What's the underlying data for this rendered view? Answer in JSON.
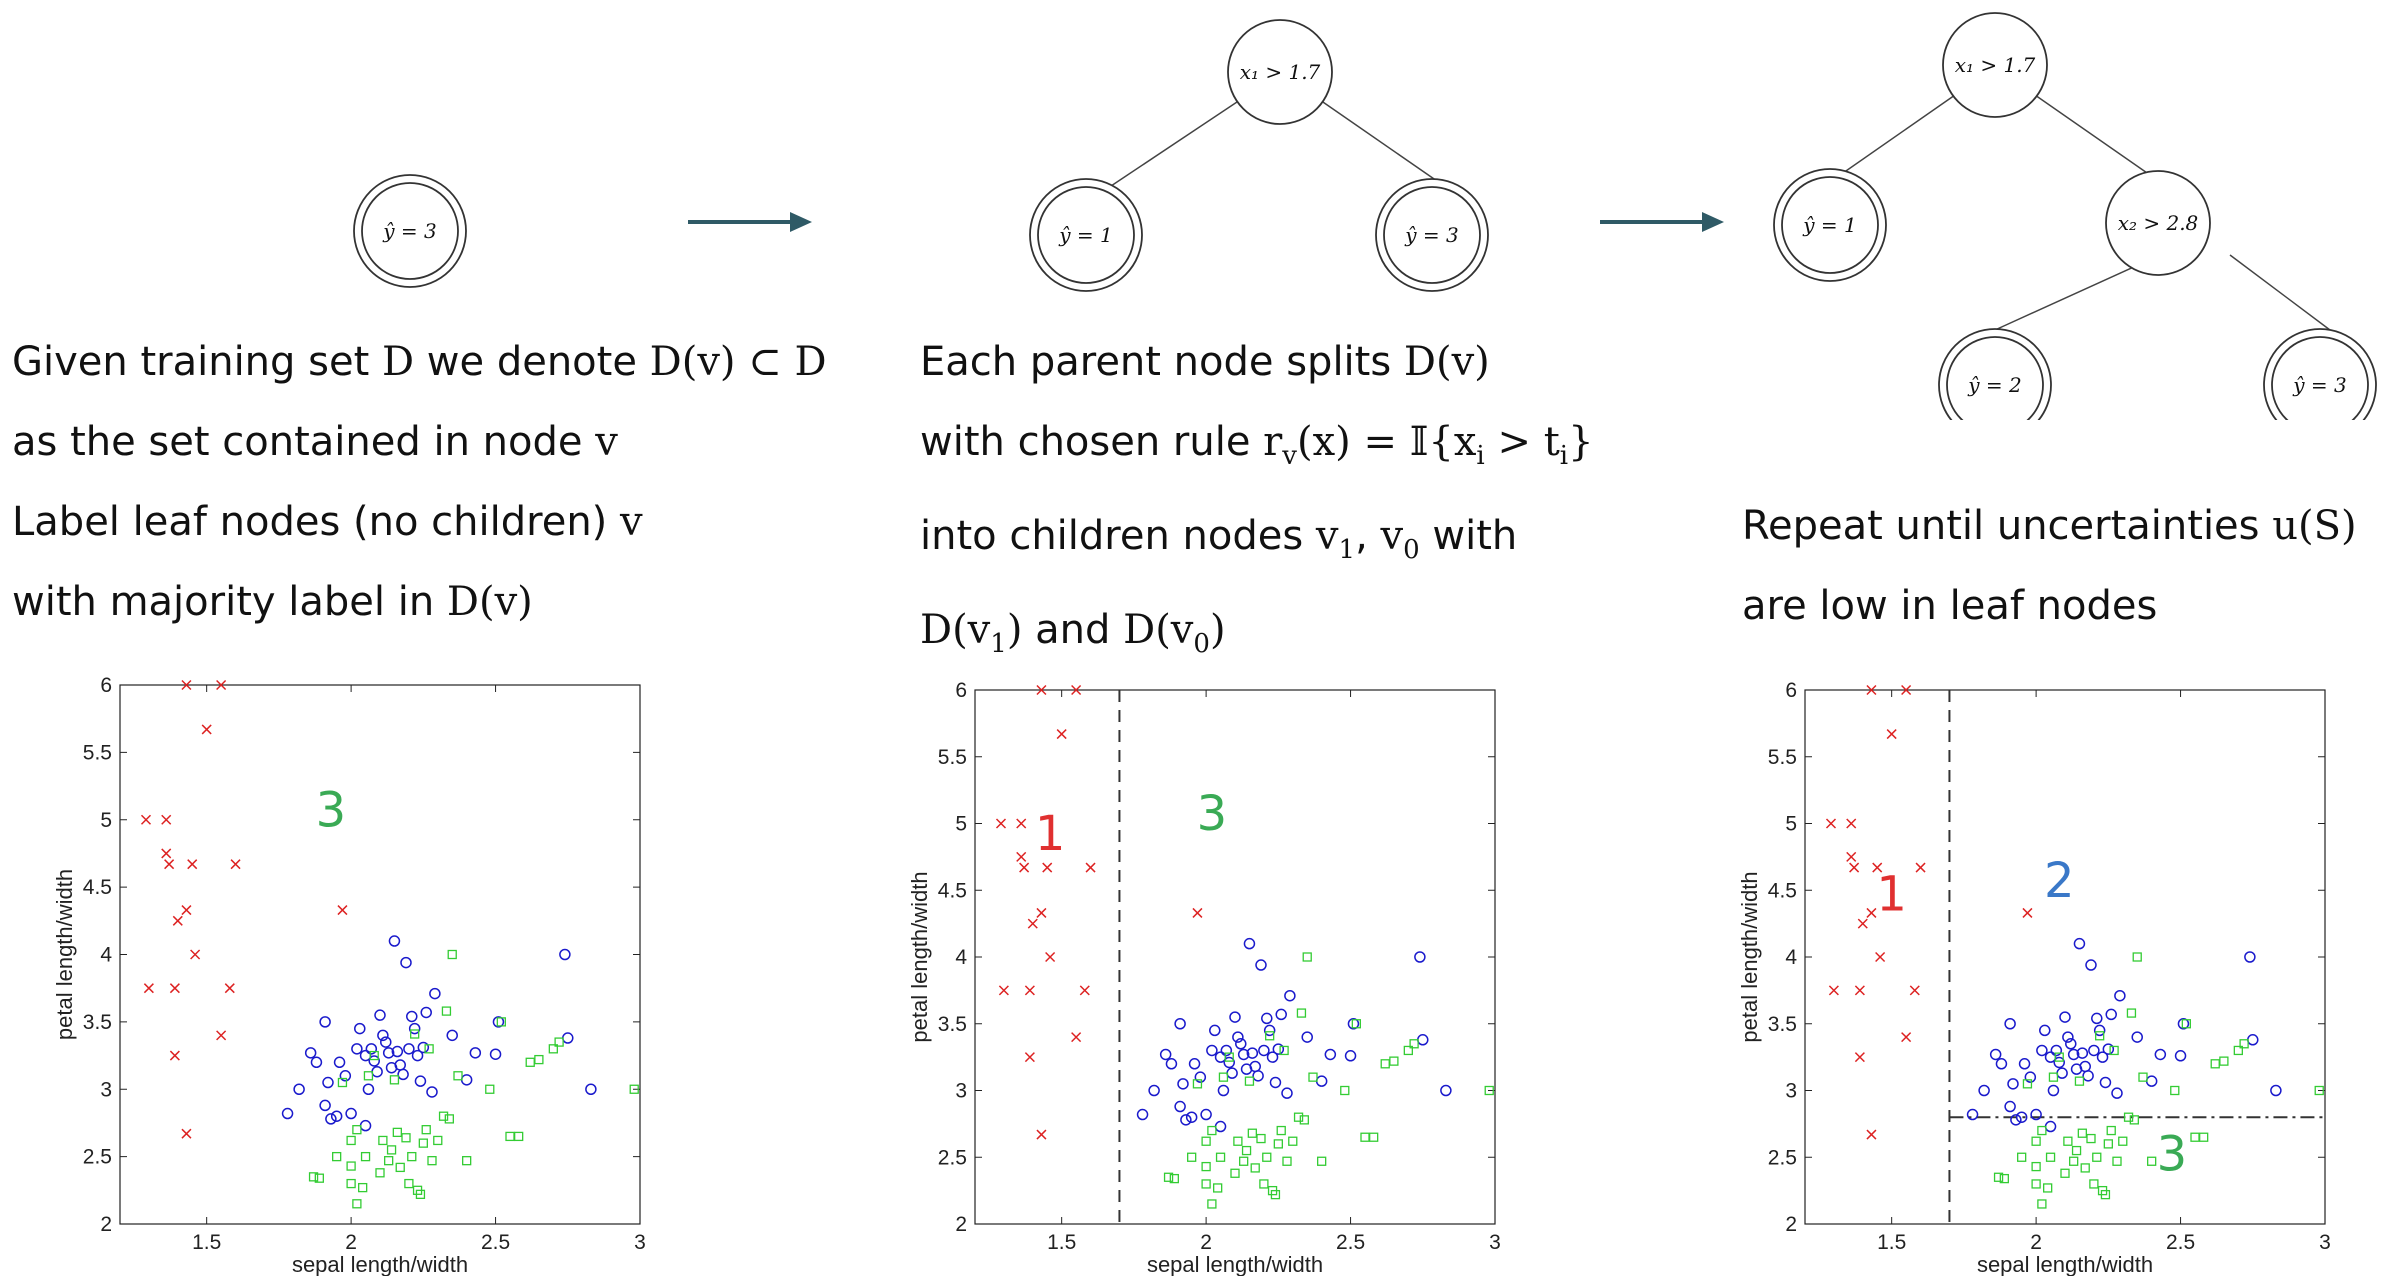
{
  "colors": {
    "class1": "#dd2222",
    "class2": "#1a1acc",
    "class3": "#33cc33",
    "region1": "#e03030",
    "region2": "#3a78c8",
    "region3": "#3aaa55",
    "arrow": "#2f5a66"
  },
  "tree1": {
    "root": "ŷ = 3"
  },
  "tree2": {
    "root": "x₁ > 1.7",
    "left": "ŷ = 1",
    "right": "ŷ = 3"
  },
  "tree3": {
    "root": "x₁ > 1.7",
    "left": "ŷ = 1",
    "mid": "x₂ > 2.8",
    "mid_left": "ŷ = 2",
    "mid_right": "ŷ = 3"
  },
  "text1": {
    "line1_a": "Given training set ",
    "line1_b": "D",
    "line1_c": " we denote ",
    "line1_d": "D(v) ⊂ D",
    "line2_a": "as the set contained in node ",
    "line2_b": "v",
    "line3_a": "Label leaf nodes (no children) ",
    "line3_b": "v",
    "line4_a": "with majority label in ",
    "line4_b": "D(v)"
  },
  "text2": {
    "line1_a": "Each parent node splits ",
    "line1_b": "D(v)",
    "line2_a": "with chosen rule ",
    "line2_b": "r",
    "line2_c": "v",
    "line2_d": "(x) = 𝕀{x",
    "line2_e": "i",
    "line2_f": " > t",
    "line2_g": "i",
    "line2_h": "}",
    "line3_a": "into children nodes ",
    "line3_b": "v",
    "line3_c": "1",
    "line3_d": ", ",
    "line3_e": "v",
    "line3_f": "0",
    "line3_g": " with",
    "line4_a": "D(v",
    "line4_b": "1",
    "line4_c": ")",
    "line4_d": " and ",
    "line4_e": "D(v",
    "line4_f": "0",
    "line4_g": ")"
  },
  "text3": {
    "line1_a": "Repeat until uncertainties ",
    "line1_b": "u(S)",
    "line2_a": "are low in leaf nodes"
  },
  "axes": {
    "xlabel": "sepal length/width",
    "ylabel": "petal length/width",
    "xlim": [
      1.2,
      3.0
    ],
    "ylim": [
      2,
      6
    ],
    "xticks": [
      "1.5",
      "2",
      "2.5",
      "3"
    ],
    "xtick_values": [
      1.5,
      2,
      2.5,
      3
    ],
    "yticks": [
      "2",
      "2.5",
      "3",
      "3.5",
      "4",
      "4.5",
      "5",
      "5.5",
      "6"
    ],
    "ytick_values": [
      2,
      2.5,
      3,
      3.5,
      4,
      4.5,
      5,
      5.5,
      6
    ]
  },
  "plot1": {
    "regions": [
      {
        "label": "3",
        "x": 1.93,
        "y": 4.95,
        "cls": "region3"
      }
    ]
  },
  "plot2": {
    "split_x": 1.7,
    "regions": [
      {
        "label": "1",
        "x": 1.46,
        "y": 4.8,
        "cls": "region1"
      },
      {
        "label": "3",
        "x": 2.02,
        "y": 4.95,
        "cls": "region3"
      }
    ]
  },
  "plot3": {
    "split_x": 1.7,
    "split_y": 2.8,
    "regions": [
      {
        "label": "1",
        "x": 1.5,
        "y": 4.35,
        "cls": "region1"
      },
      {
        "label": "2",
        "x": 2.08,
        "y": 4.45,
        "cls": "region2"
      },
      {
        "label": "3",
        "x": 2.47,
        "y": 2.4,
        "cls": "region3"
      }
    ]
  },
  "chart_data": {
    "type": "scatter",
    "xlabel": "sepal length/width",
    "ylabel": "petal length/width",
    "xlim": [
      1.2,
      3.0
    ],
    "ylim": [
      2,
      6
    ],
    "series": [
      {
        "marker": "x",
        "color": "#dd2222",
        "points": [
          [
            1.29,
            5.0
          ],
          [
            1.36,
            5.0
          ],
          [
            1.36,
            4.75
          ],
          [
            1.37,
            4.67
          ],
          [
            1.43,
            6.0
          ],
          [
            1.55,
            6.0
          ],
          [
            1.5,
            5.67
          ],
          [
            1.45,
            4.67
          ],
          [
            1.6,
            4.67
          ],
          [
            1.4,
            4.25
          ],
          [
            1.43,
            4.33
          ],
          [
            1.3,
            3.75
          ],
          [
            1.39,
            3.75
          ],
          [
            1.46,
            4.0
          ],
          [
            1.58,
            3.75
          ],
          [
            1.39,
            3.25
          ],
          [
            1.55,
            3.4
          ],
          [
            1.43,
            2.67
          ],
          [
            1.97,
            4.33
          ]
        ]
      },
      {
        "marker": "o",
        "color": "#1a1acc",
        "points": [
          [
            1.78,
            2.82
          ],
          [
            1.82,
            3.0
          ],
          [
            1.86,
            3.27
          ],
          [
            1.88,
            3.2
          ],
          [
            1.91,
            3.5
          ],
          [
            1.91,
            2.88
          ],
          [
            1.92,
            3.05
          ],
          [
            1.93,
            2.78
          ],
          [
            1.95,
            2.8
          ],
          [
            1.96,
            3.2
          ],
          [
            1.98,
            3.1
          ],
          [
            2.0,
            2.82
          ],
          [
            2.02,
            3.3
          ],
          [
            2.03,
            3.45
          ],
          [
            2.05,
            2.73
          ],
          [
            2.05,
            3.25
          ],
          [
            2.06,
            3.0
          ],
          [
            2.07,
            3.3
          ],
          [
            2.08,
            3.21
          ],
          [
            2.09,
            3.13
          ],
          [
            2.1,
            3.55
          ],
          [
            2.11,
            3.4
          ],
          [
            2.12,
            3.35
          ],
          [
            2.13,
            3.27
          ],
          [
            2.14,
            3.16
          ],
          [
            2.15,
            4.1
          ],
          [
            2.16,
            3.28
          ],
          [
            2.17,
            3.18
          ],
          [
            2.18,
            3.11
          ],
          [
            2.19,
            3.94
          ],
          [
            2.2,
            3.3
          ],
          [
            2.21,
            3.54
          ],
          [
            2.22,
            3.45
          ],
          [
            2.23,
            3.25
          ],
          [
            2.24,
            3.06
          ],
          [
            2.25,
            3.31
          ],
          [
            2.26,
            3.57
          ],
          [
            2.28,
            2.98
          ],
          [
            2.29,
            3.71
          ],
          [
            2.35,
            3.4
          ],
          [
            2.4,
            3.07
          ],
          [
            2.43,
            3.27
          ],
          [
            2.5,
            3.26
          ],
          [
            2.51,
            3.5
          ],
          [
            2.74,
            4.0
          ],
          [
            2.75,
            3.38
          ],
          [
            2.83,
            3.0
          ]
        ]
      },
      {
        "marker": "s",
        "color": "#33cc33",
        "points": [
          [
            1.87,
            2.35
          ],
          [
            1.89,
            2.34
          ],
          [
            1.95,
            2.5
          ],
          [
            1.97,
            3.05
          ],
          [
            2.0,
            2.43
          ],
          [
            2.0,
            2.3
          ],
          [
            2.0,
            2.62
          ],
          [
            2.02,
            2.7
          ],
          [
            2.02,
            2.15
          ],
          [
            2.04,
            2.27
          ],
          [
            2.05,
            2.5
          ],
          [
            2.06,
            3.1
          ],
          [
            2.08,
            3.25
          ],
          [
            2.1,
            2.38
          ],
          [
            2.11,
            2.62
          ],
          [
            2.13,
            2.47
          ],
          [
            2.14,
            2.55
          ],
          [
            2.15,
            3.07
          ],
          [
            2.16,
            2.68
          ],
          [
            2.17,
            2.42
          ],
          [
            2.19,
            2.64
          ],
          [
            2.2,
            2.3
          ],
          [
            2.21,
            2.5
          ],
          [
            2.22,
            3.41
          ],
          [
            2.23,
            2.25
          ],
          [
            2.24,
            2.22
          ],
          [
            2.25,
            2.6
          ],
          [
            2.26,
            2.7
          ],
          [
            2.27,
            3.3
          ],
          [
            2.28,
            2.47
          ],
          [
            2.3,
            2.62
          ],
          [
            2.32,
            2.8
          ],
          [
            2.33,
            3.58
          ],
          [
            2.34,
            2.78
          ],
          [
            2.35,
            4.0
          ],
          [
            2.37,
            3.1
          ],
          [
            2.4,
            2.47
          ],
          [
            2.48,
            3.0
          ],
          [
            2.52,
            3.5
          ],
          [
            2.55,
            2.65
          ],
          [
            2.58,
            2.65
          ],
          [
            2.62,
            3.2
          ],
          [
            2.65,
            3.22
          ],
          [
            2.7,
            3.3
          ],
          [
            2.72,
            3.35
          ],
          [
            2.98,
            3.0
          ]
        ]
      }
    ]
  }
}
